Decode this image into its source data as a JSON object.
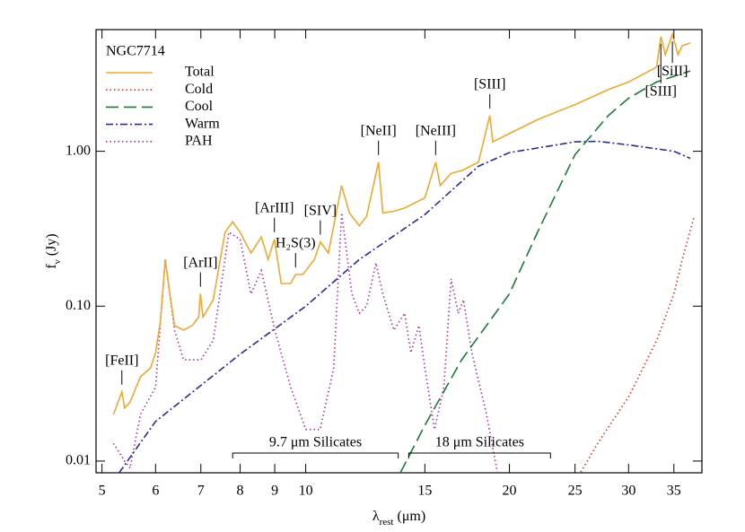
{
  "chart_data": {
    "type": "line",
    "title": "NGC7714",
    "xlabel": [
      "λ",
      "rest",
      " (μm)"
    ],
    "ylabel": [
      "f",
      "ν",
      " (Jy)"
    ],
    "xscale": "log",
    "yscale": "log",
    "xlim": [
      4.9,
      38.5
    ],
    "ylim": [
      0.0084,
      6.1
    ],
    "xticks": [
      5,
      6,
      7,
      8,
      9,
      10,
      15,
      20,
      25,
      30,
      35
    ],
    "yticks": [
      0.01,
      {
        "value": 0.1,
        "label": "0.10"
      },
      {
        "value": 1,
        "label": "1.00"
      }
    ],
    "legend": "upper left",
    "series": [
      {
        "name": "Total",
        "color": "#f0a830",
        "dash": "solid",
        "x": [
          5.2,
          5.3,
          5.35,
          5.4,
          5.5,
          5.7,
          5.9,
          6.0,
          6.1,
          6.2,
          6.3,
          6.4,
          6.6,
          6.8,
          6.95,
          6.99,
          7.05,
          7.3,
          7.6,
          7.8,
          8.0,
          8.3,
          8.6,
          8.8,
          8.99,
          9.2,
          9.5,
          9.66,
          9.9,
          10.3,
          10.51,
          10.8,
          11.3,
          11.6,
          12.0,
          12.3,
          12.81,
          13.0,
          13.5,
          14.0,
          15.0,
          15.56,
          15.8,
          16.4,
          17.0,
          18.0,
          18.71,
          18.9,
          20,
          22,
          25,
          28,
          30,
          33,
          33.48,
          34,
          34.82,
          35.5,
          36,
          37
        ],
        "values": [
          0.02,
          0.025,
          0.028,
          0.022,
          0.024,
          0.035,
          0.04,
          0.05,
          0.08,
          0.2,
          0.12,
          0.075,
          0.07,
          0.075,
          0.085,
          0.12,
          0.085,
          0.11,
          0.3,
          0.35,
          0.3,
          0.22,
          0.28,
          0.2,
          0.27,
          0.14,
          0.14,
          0.16,
          0.16,
          0.2,
          0.26,
          0.22,
          0.6,
          0.4,
          0.33,
          0.38,
          0.85,
          0.4,
          0.41,
          0.43,
          0.5,
          0.85,
          0.6,
          0.72,
          0.75,
          0.85,
          1.7,
          1.15,
          1.3,
          1.6,
          2.0,
          2.5,
          2.8,
          3.5,
          5.5,
          4.2,
          5.7,
          4.2,
          4.8,
          5.0
        ]
      },
      {
        "name": "Cold",
        "color": "#e03030",
        "dash": "dotted",
        "x": [
          25.5,
          27,
          30,
          33,
          35,
          36,
          37.5
        ],
        "values": [
          0.0085,
          0.013,
          0.026,
          0.06,
          0.12,
          0.2,
          0.38
        ]
      },
      {
        "name": "Cool",
        "color": "#1a7a3a",
        "dash": "dashed",
        "x": [
          13.8,
          15,
          17,
          20,
          22,
          25,
          28,
          30,
          33,
          37
        ],
        "values": [
          0.0084,
          0.017,
          0.045,
          0.12,
          0.3,
          0.95,
          1.7,
          2.2,
          2.8,
          3.3
        ]
      },
      {
        "name": "Warm",
        "color": "#2a2a9a",
        "dash": "dashdot",
        "x": [
          5.3,
          6,
          8,
          10,
          12,
          15,
          18,
          20,
          25,
          27,
          30,
          35,
          37
        ],
        "values": [
          0.0084,
          0.018,
          0.049,
          0.1,
          0.2,
          0.39,
          0.8,
          0.98,
          1.15,
          1.16,
          1.1,
          1.0,
          0.9
        ]
      },
      {
        "name": "PAH",
        "color": "#b030a0",
        "dash": "dotted",
        "x": [
          5.2,
          5.4,
          5.5,
          5.7,
          6.0,
          6.2,
          6.4,
          6.6,
          7.0,
          7.3,
          7.7,
          8.0,
          8.3,
          8.6,
          9.0,
          9.5,
          10.0,
          10.5,
          11.0,
          11.3,
          11.7,
          12.0,
          12.3,
          12.7,
          13.0,
          13.5,
          14.0,
          14.3,
          14.7,
          15.0,
          15.5,
          16.0,
          16.4,
          16.8,
          17.1,
          17.6,
          18.5,
          19.2
        ],
        "values": [
          0.013,
          0.01,
          0.009,
          0.02,
          0.03,
          0.2,
          0.07,
          0.045,
          0.045,
          0.06,
          0.3,
          0.27,
          0.12,
          0.17,
          0.07,
          0.03,
          0.016,
          0.016,
          0.04,
          0.4,
          0.12,
          0.09,
          0.1,
          0.19,
          0.12,
          0.07,
          0.09,
          0.05,
          0.075,
          0.04,
          0.016,
          0.03,
          0.15,
          0.09,
          0.11,
          0.05,
          0.02,
          0.0084
        ]
      }
    ],
    "annotations": [
      {
        "text": "[FeII]",
        "x": 5.35
      },
      {
        "text": "[ArII]",
        "x": 6.99
      },
      {
        "text": "[ArIII]",
        "x": 8.99
      },
      {
        "text": "H₂S(3)",
        "x": 9.66
      },
      {
        "text": "[SIV]",
        "x": 10.51
      },
      {
        "text": "[NeII]",
        "x": 12.81
      },
      {
        "text": "[NeIII]",
        "x": 15.56
      },
      {
        "text": "[SIII]",
        "x": 18.71
      },
      {
        "text": "[SIII]",
        "x": 33.48
      },
      {
        "text": "[SiII]",
        "x": 34.82
      }
    ],
    "bands": [
      {
        "label": "9.7 μm Silicates",
        "range": [
          7.8,
          13.7
        ]
      },
      {
        "label": "18 μm Silicates",
        "range": [
          14.2,
          23
        ]
      }
    ]
  }
}
